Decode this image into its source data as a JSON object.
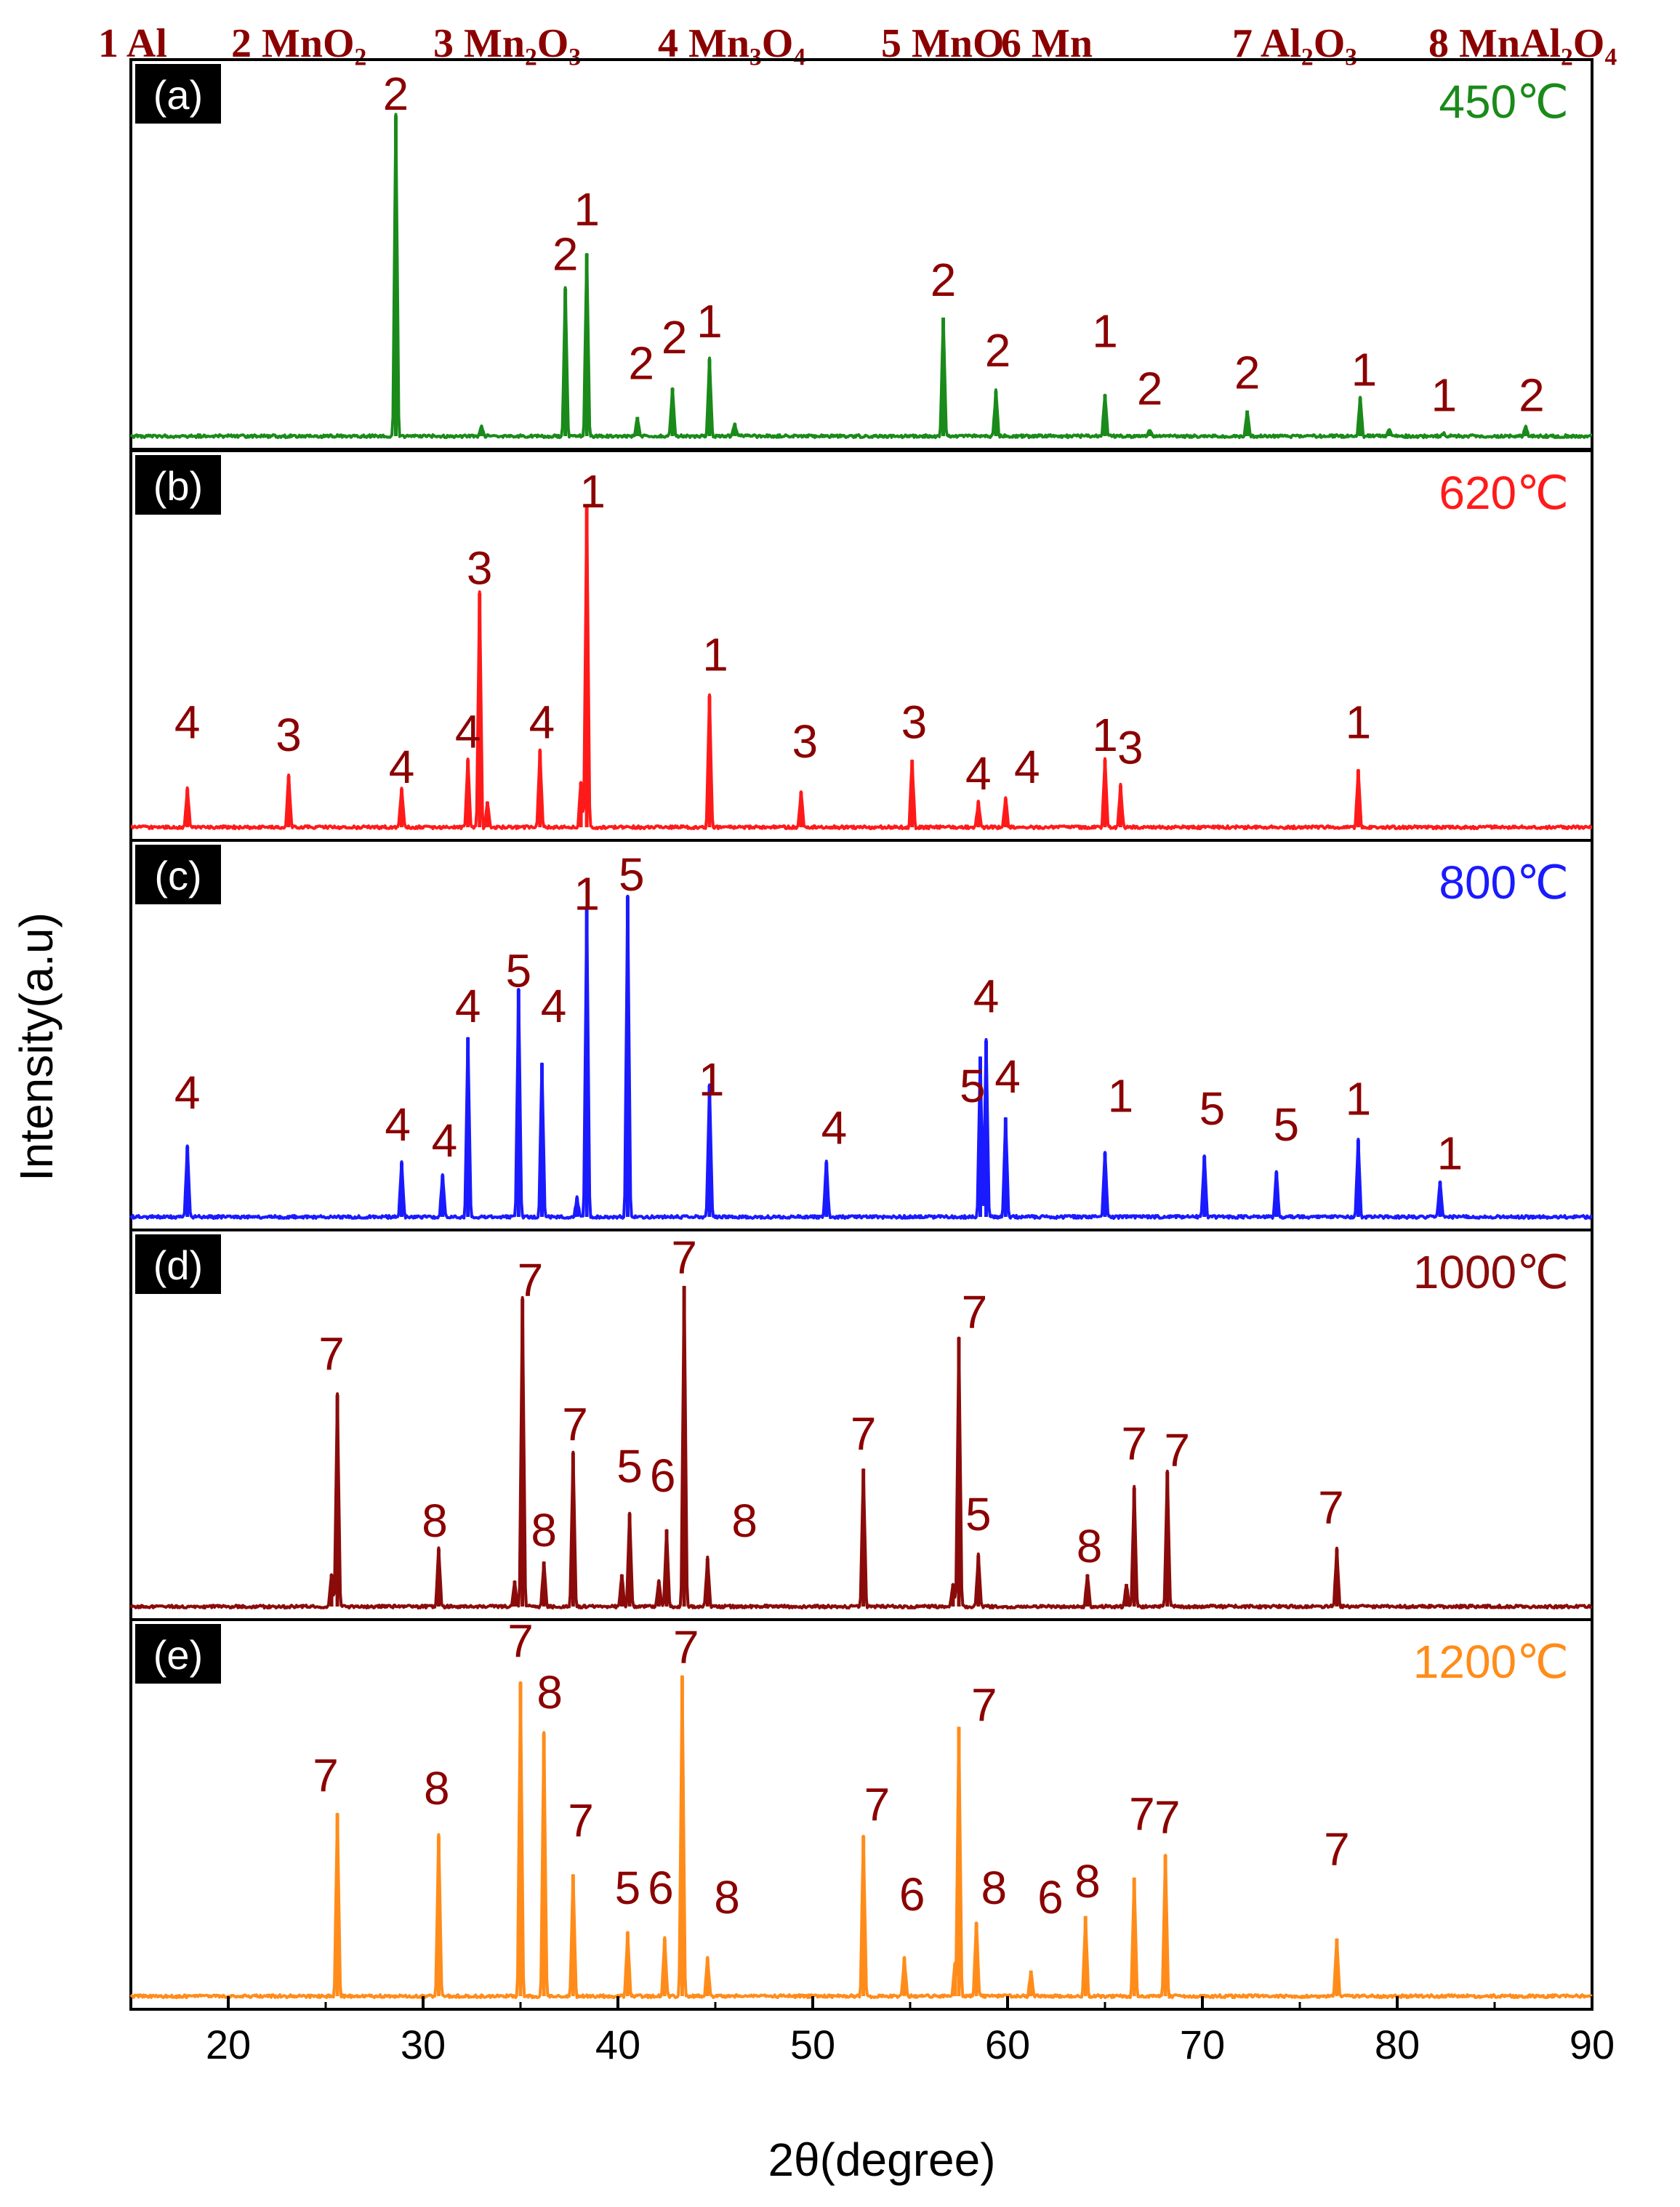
{
  "chart_data": {
    "type": "line",
    "title": "",
    "xlabel": "2θ(degree)",
    "ylabel": "Intensity(a.u)",
    "xlim": [
      15,
      90
    ],
    "xticks": [
      20,
      30,
      40,
      50,
      60,
      70,
      80,
      90
    ],
    "legend": [
      "1 Al",
      "2 MnO₂",
      "3 Mn₂O₃",
      "4 Mn₃O₄",
      "5 MnO",
      "6 Mn",
      "7 Al₂O₃",
      "8 MnAl₂O₄"
    ],
    "series": [
      {
        "name": "450℃",
        "tag": "(a)",
        "color": "#1a8a1a",
        "peaks": [
          [
            28.6,
            1.0
          ],
          [
            33.0,
            0.03
          ],
          [
            37.3,
            0.46
          ],
          [
            38.4,
            0.57
          ],
          [
            41.0,
            0.06
          ],
          [
            42.8,
            0.15
          ],
          [
            44.7,
            0.24
          ],
          [
            46.0,
            0.04
          ],
          [
            56.7,
            0.37
          ],
          [
            59.4,
            0.14
          ],
          [
            65.0,
            0.13
          ],
          [
            67.3,
            0.02
          ],
          [
            72.3,
            0.08
          ],
          [
            78.1,
            0.12
          ],
          [
            79.6,
            0.02
          ],
          [
            82.4,
            0.01
          ],
          [
            86.6,
            0.03
          ]
        ],
        "labels": [
          [
            "2",
            28.6,
            1.0
          ],
          [
            "1",
            38.4,
            0.64
          ],
          [
            "2",
            37.3,
            0.5
          ],
          [
            "2",
            41.2,
            0.16
          ],
          [
            "2",
            42.9,
            0.24
          ],
          [
            "1",
            44.7,
            0.29
          ],
          [
            "2",
            56.7,
            0.42
          ],
          [
            "2",
            59.5,
            0.2
          ],
          [
            "1",
            65.0,
            0.26
          ],
          [
            "2",
            67.3,
            0.08
          ],
          [
            "2",
            72.3,
            0.13
          ],
          [
            "1",
            78.3,
            0.14
          ],
          [
            "1",
            82.4,
            0.06
          ],
          [
            "2",
            86.9,
            0.06
          ]
        ]
      },
      {
        "name": "620℃",
        "tag": "(b)",
        "color": "#ff1a1a",
        "peaks": [
          [
            17.9,
            0.12
          ],
          [
            23.1,
            0.16
          ],
          [
            28.9,
            0.12
          ],
          [
            32.3,
            0.21
          ],
          [
            32.9,
            0.73
          ],
          [
            33.3,
            0.08
          ],
          [
            36.0,
            0.24
          ],
          [
            38.1,
            0.14
          ],
          [
            38.4,
            1.0
          ],
          [
            44.7,
            0.41
          ],
          [
            49.4,
            0.11
          ],
          [
            55.1,
            0.21
          ],
          [
            58.5,
            0.08
          ],
          [
            59.9,
            0.09
          ],
          [
            65.0,
            0.21
          ],
          [
            65.8,
            0.13
          ],
          [
            78.0,
            0.18
          ]
        ],
        "labels": [
          [
            "4",
            17.9,
            0.26
          ],
          [
            "3",
            23.1,
            0.22
          ],
          [
            "4",
            28.9,
            0.12
          ],
          [
            "4",
            32.3,
            0.23
          ],
          [
            "3",
            32.9,
            0.74
          ],
          [
            "4",
            36.1,
            0.26
          ],
          [
            "1",
            38.7,
            0.98
          ],
          [
            "1",
            45.0,
            0.47
          ],
          [
            "3",
            49.6,
            0.2
          ],
          [
            "3",
            55.2,
            0.26
          ],
          [
            "4",
            58.5,
            0.1
          ],
          [
            "4",
            61.0,
            0.12
          ],
          [
            "1",
            65.0,
            0.22
          ],
          [
            "3",
            66.3,
            0.18
          ],
          [
            "1",
            78.0,
            0.26
          ]
        ]
      },
      {
        "name": "800℃",
        "tag": "(c)",
        "color": "#1a1aff",
        "peaks": [
          [
            17.9,
            0.22
          ],
          [
            28.9,
            0.17
          ],
          [
            31.0,
            0.13
          ],
          [
            32.3,
            0.56
          ],
          [
            34.9,
            0.71
          ],
          [
            36.1,
            0.48
          ],
          [
            37.9,
            0.06
          ],
          [
            38.4,
            0.96
          ],
          [
            40.5,
            1.0
          ],
          [
            44.7,
            0.41
          ],
          [
            50.7,
            0.17
          ],
          [
            58.6,
            0.5
          ],
          [
            58.9,
            0.55
          ],
          [
            59.9,
            0.31
          ],
          [
            65.0,
            0.2
          ],
          [
            70.1,
            0.19
          ],
          [
            73.8,
            0.14
          ],
          [
            78.0,
            0.24
          ],
          [
            82.2,
            0.11
          ]
        ],
        "labels": [
          [
            "4",
            17.9,
            0.32
          ],
          [
            "4",
            28.7,
            0.22
          ],
          [
            "4",
            31.1,
            0.17
          ],
          [
            "4",
            32.3,
            0.59
          ],
          [
            "5",
            34.9,
            0.7
          ],
          [
            "4",
            36.7,
            0.59
          ],
          [
            "1",
            38.4,
            0.94
          ],
          [
            "5",
            40.7,
            1.0
          ],
          [
            "1",
            44.8,
            0.36
          ],
          [
            "4",
            51.1,
            0.21
          ],
          [
            "5",
            58.2,
            0.34
          ],
          [
            "4",
            58.9,
            0.62
          ],
          [
            "4",
            60.0,
            0.37
          ],
          [
            "1",
            65.8,
            0.31
          ],
          [
            "5",
            70.5,
            0.27
          ],
          [
            "5",
            74.3,
            0.22
          ],
          [
            "1",
            78.0,
            0.3
          ],
          [
            "1",
            82.7,
            0.13
          ]
        ]
      },
      {
        "name": "1000℃",
        "tag": "(d)",
        "color": "#8b0b0b",
        "peaks": [
          [
            25.3,
            0.1
          ],
          [
            25.6,
            0.66
          ],
          [
            30.8,
            0.18
          ],
          [
            34.7,
            0.08
          ],
          [
            35.1,
            0.96
          ],
          [
            36.2,
            0.14
          ],
          [
            37.7,
            0.48
          ],
          [
            40.2,
            0.1
          ],
          [
            40.6,
            0.29
          ],
          [
            42.1,
            0.08
          ],
          [
            42.5,
            0.24
          ],
          [
            43.4,
            1.0
          ],
          [
            44.6,
            0.15
          ],
          [
            52.6,
            0.43
          ],
          [
            57.2,
            0.07
          ],
          [
            57.5,
            0.84
          ],
          [
            58.5,
            0.16
          ],
          [
            64.1,
            0.1
          ],
          [
            66.1,
            0.07
          ],
          [
            66.5,
            0.37
          ],
          [
            68.2,
            0.42
          ],
          [
            76.9,
            0.18
          ]
        ],
        "labels": [
          [
            "7",
            25.3,
            0.72
          ],
          [
            "8",
            30.6,
            0.2
          ],
          [
            "7",
            35.5,
            0.95
          ],
          [
            "8",
            36.2,
            0.17
          ],
          [
            "7",
            37.8,
            0.5
          ],
          [
            "5",
            40.6,
            0.37
          ],
          [
            "6",
            42.3,
            0.34
          ],
          [
            "7",
            43.4,
            1.02
          ],
          [
            "8",
            46.5,
            0.2
          ],
          [
            "7",
            52.6,
            0.47
          ],
          [
            "7",
            58.3,
            0.85
          ],
          [
            "5",
            58.5,
            0.22
          ],
          [
            "8",
            64.2,
            0.12
          ],
          [
            "7",
            66.5,
            0.44
          ],
          [
            "7",
            68.7,
            0.42
          ],
          [
            "7",
            76.6,
            0.24
          ]
        ]
      },
      {
        "name": "1200℃",
        "tag": "(e)",
        "color": "#ff8c1a",
        "peaks": [
          [
            25.6,
            0.57
          ],
          [
            30.8,
            0.5
          ],
          [
            35.0,
            0.98
          ],
          [
            36.2,
            0.82
          ],
          [
            37.7,
            0.38
          ],
          [
            40.5,
            0.2
          ],
          [
            42.4,
            0.18
          ],
          [
            43.3,
            1.0
          ],
          [
            44.6,
            0.12
          ],
          [
            52.6,
            0.5
          ],
          [
            54.7,
            0.12
          ],
          [
            57.3,
            0.1
          ],
          [
            57.5,
            0.84
          ],
          [
            58.4,
            0.23
          ],
          [
            61.2,
            0.08
          ],
          [
            64.0,
            0.25
          ],
          [
            66.5,
            0.37
          ],
          [
            68.1,
            0.44
          ],
          [
            76.9,
            0.18
          ]
        ],
        "labels": [
          [
            "7",
            25.0,
            0.62
          ],
          [
            "8",
            30.7,
            0.58
          ],
          [
            "7",
            35.0,
            1.04
          ],
          [
            "8",
            36.5,
            0.88
          ],
          [
            "7",
            38.1,
            0.48
          ],
          [
            "5",
            40.5,
            0.27
          ],
          [
            "6",
            42.2,
            0.27
          ],
          [
            "7",
            43.5,
            1.02
          ],
          [
            "8",
            45.6,
            0.24
          ],
          [
            "7",
            53.3,
            0.53
          ],
          [
            "6",
            55.1,
            0.25
          ],
          [
            "7",
            58.8,
            0.84
          ],
          [
            "8",
            59.3,
            0.27
          ],
          [
            "6",
            62.2,
            0.24
          ],
          [
            "8",
            64.1,
            0.29
          ],
          [
            "7",
            66.9,
            0.5
          ],
          [
            "7",
            68.2,
            0.49
          ],
          [
            "7",
            76.9,
            0.39
          ]
        ]
      }
    ]
  }
}
